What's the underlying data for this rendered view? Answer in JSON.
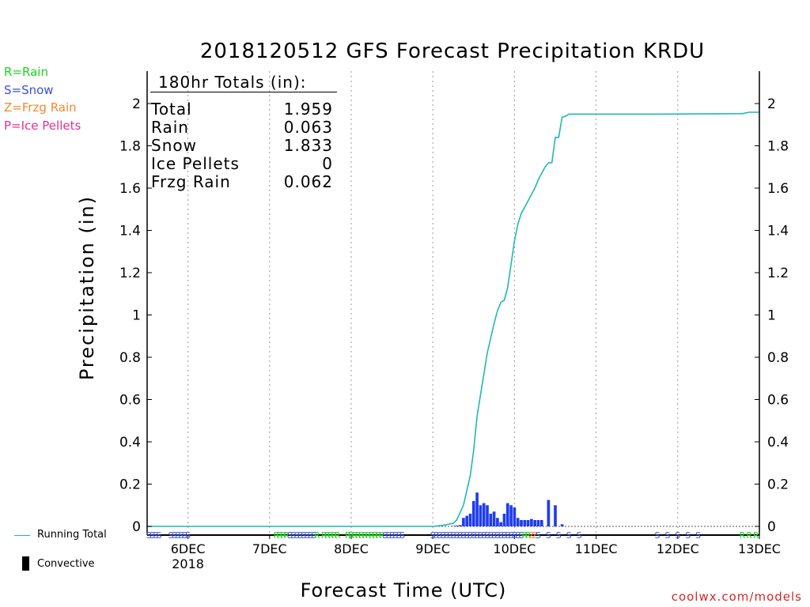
{
  "title": "2018120512 GFS Forecast Precipitation KRDU",
  "legend": [
    {
      "label": "R=Rain",
      "color": "#1fd11f"
    },
    {
      "label": "S=Snow",
      "color": "#3a4fe0"
    },
    {
      "label": "Z=Frzg Rain",
      "color": "#f08a30"
    },
    {
      "label": "P=Ice Pellets",
      "color": "#e0309a"
    }
  ],
  "key": {
    "running_total": "Running Total",
    "convective": "Convective"
  },
  "totals": {
    "heading": "180hr Totals (in):",
    "rows": [
      {
        "label": "Total",
        "value": "1.959"
      },
      {
        "label": "Rain",
        "value": "0.063"
      },
      {
        "label": "Snow",
        "value": "1.833"
      },
      {
        "label": "Ice Pellets",
        "value": "0"
      },
      {
        "label": "Frzg Rain",
        "value": "0.062"
      }
    ]
  },
  "credit": "coolwx.com/models",
  "chart_data": {
    "type": "bar",
    "title": "2018120512 GFS Forecast Precipitation KRDU",
    "xlabel": "Forecast Time (UTC)",
    "ylabel": "Precipitation (in)",
    "ylim": [
      0,
      2.1
    ],
    "yticks": [
      0,
      0.2,
      0.4,
      0.6,
      0.8,
      1,
      1.2,
      1.4,
      1.6,
      1.8,
      2
    ],
    "ytick_labels": [
      "0",
      "0.2",
      "0.4",
      "0.6",
      "0.8",
      "1",
      "1.2",
      "1.4",
      "1.6",
      "1.8",
      "2"
    ],
    "xlim_hours": [
      0,
      180
    ],
    "xtick_hours": [
      12,
      36,
      60,
      84,
      108,
      132,
      156,
      180
    ],
    "xtick_labels": [
      "6DEC",
      "7DEC",
      "8DEC",
      "9DEC",
      "10DEC",
      "11DEC",
      "12DEC",
      "13DEC"
    ],
    "xtick_sublabel": {
      "under": "6DEC",
      "text": "2018"
    },
    "grid": "vertical dotted at day boundaries",
    "series": [
      {
        "name": "Running Total",
        "type": "line",
        "color": "#1fb8b5",
        "hours": [
          0,
          84,
          87,
          90,
          91,
          93,
          94,
          95,
          96,
          97,
          98,
          99,
          100,
          101,
          102,
          103,
          104,
          105,
          106,
          107,
          108,
          109,
          110,
          111,
          112,
          113,
          114,
          115,
          116,
          117,
          118,
          119,
          120,
          121,
          122,
          123,
          124,
          125,
          126,
          135,
          150,
          175,
          177,
          180
        ],
        "values": [
          0.0,
          0.0,
          0.005,
          0.015,
          0.03,
          0.1,
          0.17,
          0.24,
          0.36,
          0.52,
          0.62,
          0.72,
          0.82,
          0.89,
          0.96,
          1.02,
          1.06,
          1.07,
          1.13,
          1.24,
          1.35,
          1.43,
          1.48,
          1.51,
          1.54,
          1.57,
          1.6,
          1.64,
          1.67,
          1.7,
          1.72,
          1.72,
          1.84,
          1.84,
          1.935,
          1.94,
          1.95,
          1.95,
          1.95,
          1.95,
          1.95,
          1.952,
          1.959,
          1.959
        ]
      },
      {
        "name": "Convective",
        "type": "bar",
        "color": "#1e3cf0",
        "hours": [
          84,
          85,
          86,
          87,
          88,
          89,
          90,
          91,
          92,
          93,
          94,
          95,
          96,
          97,
          98,
          99,
          100,
          101,
          102,
          103,
          104,
          105,
          106,
          107,
          108,
          109,
          110,
          111,
          112,
          113,
          114,
          115,
          116,
          117,
          118,
          119,
          120,
          121,
          122,
          123,
          124,
          125,
          126
        ],
        "values": [
          0.0,
          0.0,
          0.0,
          0.0,
          0.0,
          0.0,
          0.002,
          0.004,
          0.006,
          0.04,
          0.05,
          0.06,
          0.12,
          0.16,
          0.1,
          0.11,
          0.1,
          0.06,
          0.07,
          0.04,
          0.02,
          0.06,
          0.11,
          0.1,
          0.09,
          0.04,
          0.03,
          0.03,
          0.03,
          0.035,
          0.03,
          0.03,
          0.03,
          0.0,
          0.125,
          0.0,
          0.1,
          0.0,
          0.01,
          0.0,
          0.0,
          0.0,
          0.0
        ]
      }
    ],
    "ptype_markers": "row of R/S/Z letters along the time axis"
  }
}
